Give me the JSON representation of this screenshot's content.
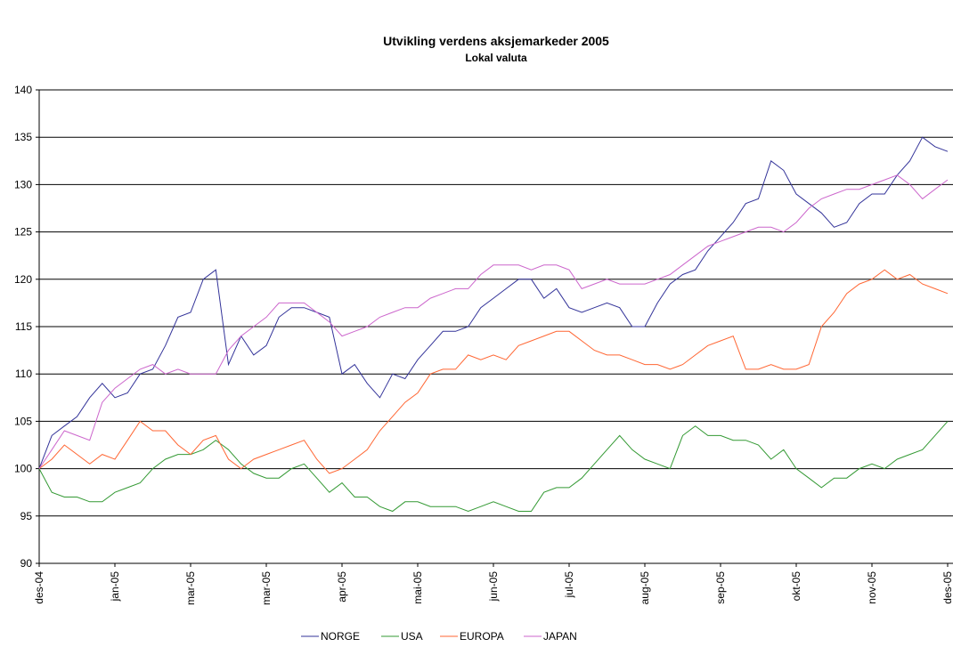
{
  "chart_data": {
    "type": "line",
    "title": "Utvikling verdens aksjemarkeder 2005",
    "subtitle": "Lokal valuta",
    "categories": [
      "des-04",
      null,
      null,
      null,
      null,
      null,
      "jan-05",
      null,
      null,
      null,
      null,
      null,
      "mar-05",
      null,
      null,
      null,
      null,
      null,
      "mar-05",
      null,
      null,
      null,
      null,
      null,
      "apr-05",
      null,
      null,
      null,
      null,
      null,
      "mai-05",
      null,
      null,
      null,
      null,
      null,
      "jun-05",
      null,
      null,
      null,
      null,
      null,
      "jul-05",
      null,
      null,
      null,
      null,
      null,
      "aug-05",
      null,
      null,
      null,
      null,
      null,
      "sep-05",
      null,
      null,
      null,
      null,
      null,
      "okt-05",
      null,
      null,
      null,
      null,
      null,
      "nov-05",
      null,
      null,
      null,
      null,
      null,
      "des-05"
    ],
    "series": [
      {
        "name": "NORGE",
        "color": "#333399",
        "values": [
          100,
          103.5,
          104.5,
          105.5,
          107.5,
          109,
          107.5,
          108,
          110,
          110.5,
          113,
          116,
          116.5,
          120,
          121,
          111,
          114,
          112,
          113,
          116,
          117,
          117,
          116.5,
          116,
          110,
          111,
          109,
          107.5,
          110,
          109.5,
          111.5,
          113,
          114.5,
          114.5,
          115,
          117,
          118,
          119,
          120,
          120,
          118,
          119,
          117,
          116.5,
          117,
          117.5,
          117,
          115,
          115,
          117.5,
          119.5,
          120.5,
          121,
          123,
          124.5,
          126,
          128,
          128.5,
          132.5,
          131.5,
          129,
          128,
          127,
          125.5,
          126,
          128,
          129,
          129,
          131,
          132.5,
          135,
          134,
          133.5
        ]
      },
      {
        "name": "USA",
        "color": "#339933",
        "values": [
          100,
          97.5,
          97,
          97,
          96.5,
          96.5,
          97.5,
          98,
          98.5,
          100,
          101,
          101.5,
          101.5,
          102,
          103,
          102,
          100.5,
          99.5,
          99,
          99,
          100,
          100.5,
          99,
          97.5,
          98.5,
          97,
          97,
          96,
          95.5,
          96.5,
          96.5,
          96,
          96,
          96,
          95.5,
          96,
          96.5,
          96,
          95.5,
          95.5,
          97.5,
          98,
          98,
          99,
          100.5,
          102,
          103.5,
          102,
          101,
          100.5,
          100,
          103.5,
          104.5,
          103.5,
          103.5,
          103,
          103,
          102.5,
          101,
          102,
          100,
          99,
          98,
          99,
          99,
          100,
          100.5,
          100,
          101,
          101.5,
          102,
          103.5,
          105
        ]
      },
      {
        "name": "EUROPA",
        "color": "#ff6633",
        "values": [
          100,
          101,
          102.5,
          101.5,
          100.5,
          101.5,
          101,
          103,
          105,
          104,
          104,
          102.5,
          101.5,
          103,
          103.5,
          101,
          100,
          101,
          101.5,
          102,
          102.5,
          103,
          101,
          99.5,
          100,
          101,
          102,
          104,
          105.5,
          107,
          108,
          110,
          110.5,
          110.5,
          112,
          111.5,
          112,
          111.5,
          113,
          113.5,
          114,
          114.5,
          114.5,
          113.5,
          112.5,
          112,
          112,
          111.5,
          111,
          111,
          110.5,
          111,
          112,
          113,
          113.5,
          114,
          110.5,
          110.5,
          111,
          110.5,
          110.5,
          111,
          115,
          116.5,
          118.5,
          119.5,
          120,
          121,
          120,
          120.5,
          119.5,
          119,
          118.5
        ]
      },
      {
        "name": "JAPAN",
        "color": "#cc66cc",
        "values": [
          100,
          102,
          104,
          103.5,
          103,
          107,
          108.5,
          109.5,
          110.5,
          111,
          110,
          110.5,
          110,
          110,
          110,
          112.5,
          114,
          115,
          116,
          117.5,
          117.5,
          117.5,
          116.5,
          115.5,
          114,
          114.5,
          115,
          116,
          116.5,
          117,
          117,
          118,
          118.5,
          119,
          119,
          120.5,
          121.5,
          121.5,
          121.5,
          121,
          121.5,
          121.5,
          121,
          119,
          119.5,
          120,
          119.5,
          119.5,
          119.5,
          120,
          120.5,
          121.5,
          122.5,
          123.5,
          124,
          124.5,
          125,
          125.5,
          125.5,
          125,
          126,
          127.5,
          128.5,
          129,
          129.5,
          129.5,
          130,
          130.5,
          131,
          130,
          128.5,
          129.5,
          130.5
        ]
      }
    ],
    "ylim": [
      90,
      140
    ],
    "yticks": [
      90,
      95,
      100,
      105,
      110,
      115,
      120,
      125,
      130,
      135,
      140
    ],
    "grid": true,
    "legend": "bottom"
  }
}
